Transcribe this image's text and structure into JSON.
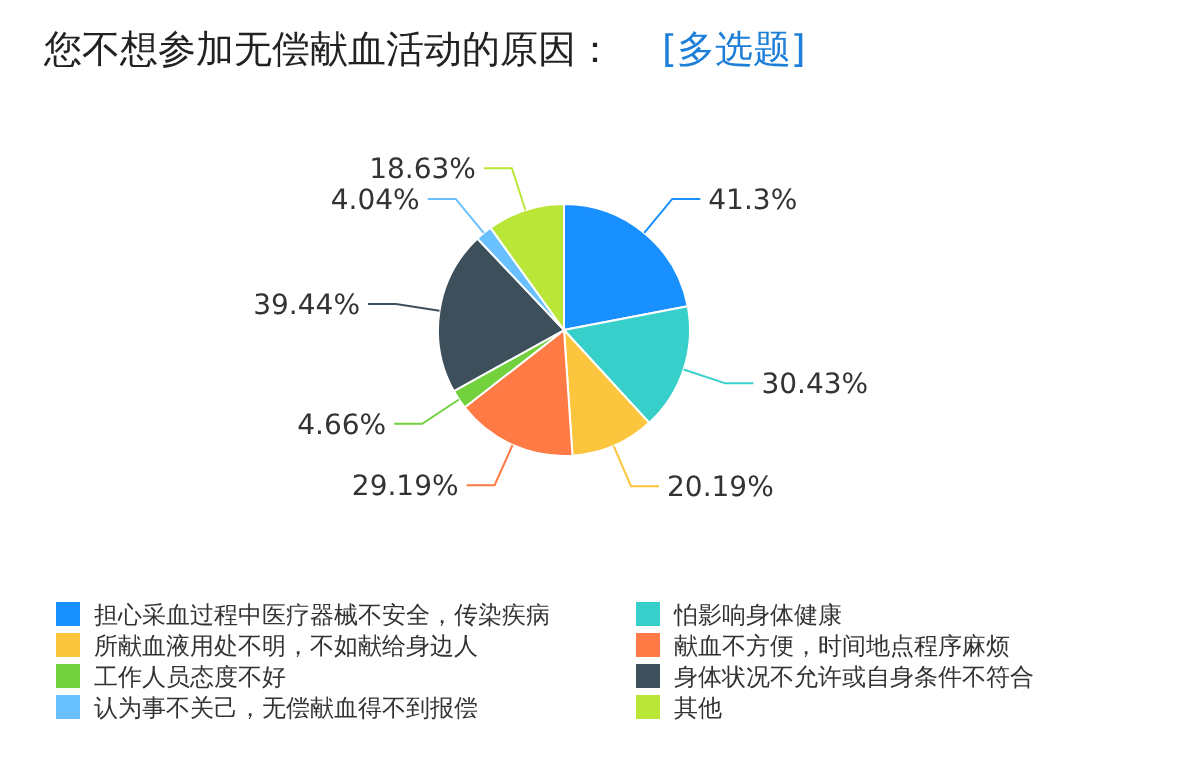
{
  "chart_data": {
    "type": "pie",
    "title": "您不想参加无偿献血活动的原因：",
    "subtitle": "[多选题]",
    "categories": [
      "担心采血过程中医疗器械不安全，传染疾病",
      "怕影响身体健康",
      "所献血液用处不明，不如献给身边人",
      "献血不方便，时间地点程序麻烦",
      "工作人员态度不好",
      "身体状况不允许或自身条件不符合",
      "认为事不关己，无偿献血得不到报偿",
      "其他"
    ],
    "values": [
      41.3,
      30.43,
      20.19,
      29.19,
      4.66,
      39.44,
      4.04,
      18.63
    ],
    "value_labels": [
      "41.3%",
      "30.43%",
      "20.19%",
      "29.19%",
      "4.66%",
      "39.44%",
      "4.04%",
      "18.63%"
    ],
    "colors": [
      "#1890ff",
      "#36cfc9",
      "#fcc53e",
      "#ff7a45",
      "#73d13d",
      "#3e4f5c",
      "#69c0ff",
      "#bae637"
    ],
    "legend": "bottom"
  }
}
